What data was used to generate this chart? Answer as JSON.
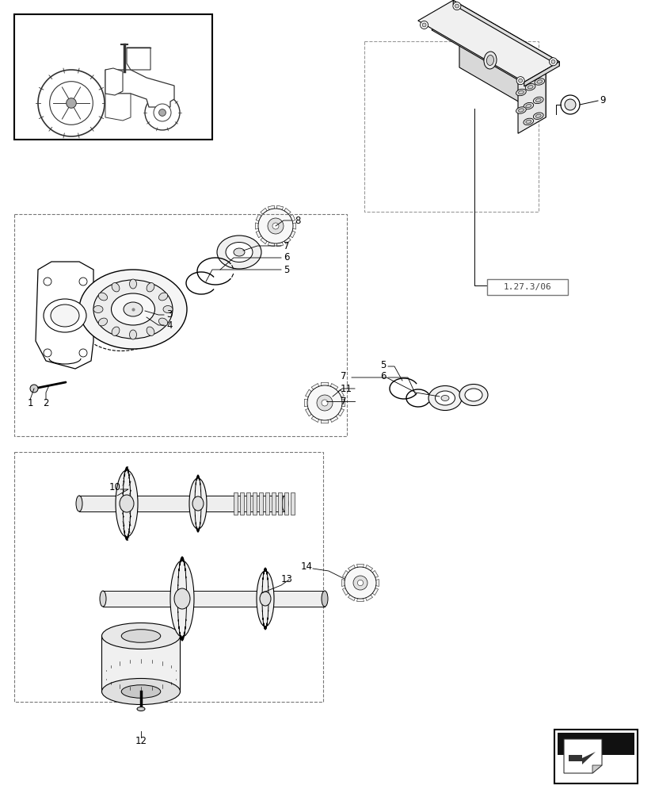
{
  "bg_color": "#ffffff",
  "lc": "#000000",
  "gray": "#888888",
  "light": "#f0f0f0",
  "figsize": [
    8.28,
    10.0
  ],
  "dpi": 100,
  "ref_text": "1.27.3/06"
}
